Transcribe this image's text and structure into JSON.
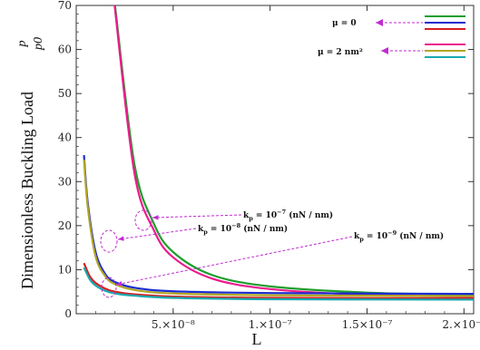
{
  "chart_data": {
    "type": "line",
    "xlabel": "L",
    "ylabel": "Dimensionless Buckling Load",
    "ylabel_fraction": {
      "numerator": "p",
      "denominator": "p0"
    },
    "xlim": [
      0.0,
      2.05e-07
    ],
    "ylim": [
      0,
      70
    ],
    "x_ticks": [
      {
        "value": 5e-08,
        "label": "5.×10⁻⁸"
      },
      {
        "value": 1e-07,
        "label": "1.×10⁻⁷"
      },
      {
        "value": 1.5e-07,
        "label": "1.5×10⁻⁷"
      },
      {
        "value": 2e-07,
        "label": "2.×10⁻⁷"
      }
    ],
    "y_ticks": [
      0,
      10,
      20,
      30,
      40,
      50,
      60,
      70
    ],
    "legend": {
      "placement": "top-right",
      "groups": [
        {
          "label": "μ = 0",
          "colors": [
            "#1f9e2c",
            "#1c2ccf",
            "#d42020"
          ]
        },
        {
          "label": "μ = 2  nm²",
          "colors": [
            "#ea1c8c",
            "#b2a626",
            "#1aa9b0"
          ]
        }
      ]
    },
    "annotations": [
      {
        "text": "kp = 10⁻⁷ (nN / nm)",
        "base": "k",
        "sub": "p",
        "eq": " = 10",
        "sup": "−7",
        "tail": " (nN / nm)"
      },
      {
        "text": "kp = 10⁻⁸ (nN / nm)",
        "base": "k",
        "sub": "p",
        "eq": " = 10",
        "sup": "−8",
        "tail": " (nN / nm)"
      },
      {
        "text": "kp = 10⁻⁹ (nN / nm)",
        "base": "k",
        "sub": "p",
        "eq": " = 10",
        "sup": "−9",
        "tail": " (nN / nm)"
      }
    ],
    "series": [
      {
        "color": "#1f9e2c",
        "x": [
          2e-08,
          3e-08,
          4e-08,
          5e-08,
          7e-08,
          1e-07,
          1.5e-07,
          2.05e-07
        ],
        "y": [
          70,
          34,
          20.5,
          14,
          8.8,
          6.2,
          4.8,
          4.3
        ]
      },
      {
        "color": "#ea1c8c",
        "x": [
          1.98e-08,
          3e-08,
          4e-08,
          5e-08,
          7e-08,
          1e-07,
          1.5e-07,
          2.05e-07
        ],
        "y": [
          70,
          32,
          19,
          12.8,
          8,
          5.6,
          4.3,
          3.9
        ]
      },
      {
        "color": "#1c2ccf",
        "x": [
          4e-09,
          6e-09,
          1e-08,
          1.5e-08,
          2e-08,
          3e-08,
          5e-08,
          1e-07,
          2.05e-07
        ],
        "y": [
          36,
          25,
          14,
          9,
          7.2,
          5.9,
          5.1,
          4.7,
          4.5
        ]
      },
      {
        "color": "#b2a626",
        "x": [
          4e-09,
          6e-09,
          1e-08,
          1.5e-08,
          2e-08,
          3e-08,
          5e-08,
          1e-07,
          2.05e-07
        ],
        "y": [
          35,
          24,
          13,
          8.5,
          6.7,
          5.4,
          4.6,
          4.2,
          4.0
        ]
      },
      {
        "color": "#d42020",
        "x": [
          4e-09,
          7e-09,
          1e-08,
          1.5e-08,
          2e-08,
          3e-08,
          5e-08,
          1e-07,
          2.05e-07
        ],
        "y": [
          11.5,
          8.5,
          7,
          5.7,
          5,
          4.4,
          3.9,
          3.6,
          3.5
        ]
      },
      {
        "color": "#1aa9b0",
        "x": [
          4e-09,
          7e-09,
          1e-08,
          1.5e-08,
          2e-08,
          3e-08,
          5e-08,
          1e-07,
          2.05e-07
        ],
        "y": [
          10.5,
          7.8,
          6.4,
          5.2,
          4.6,
          4.1,
          3.6,
          3.3,
          3.2
        ]
      }
    ]
  }
}
